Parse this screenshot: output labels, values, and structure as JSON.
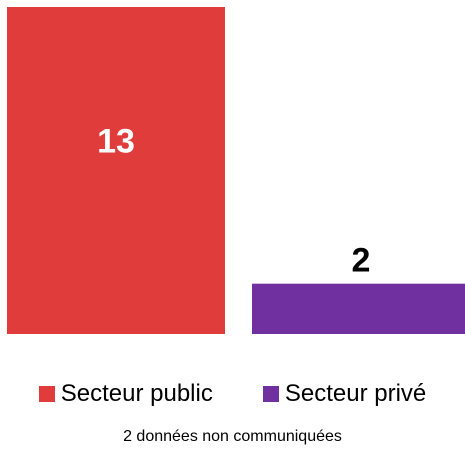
{
  "chart_data": {
    "type": "bar",
    "categories": [
      "Secteur public",
      "Secteur privé"
    ],
    "values": [
      13,
      2
    ],
    "colors": [
      "#e03c3c",
      "#7030a0"
    ],
    "label_colors": [
      "#ffffff",
      "#000000"
    ],
    "legend_position": "bottom",
    "grid": false,
    "ylim": [
      0,
      13
    ]
  },
  "legend": {
    "items": [
      {
        "label": "Secteur public",
        "color": "#e03c3c"
      },
      {
        "label": "Secteur privé",
        "color": "#7030a0"
      }
    ]
  },
  "footnote": "2 données non communiquées"
}
